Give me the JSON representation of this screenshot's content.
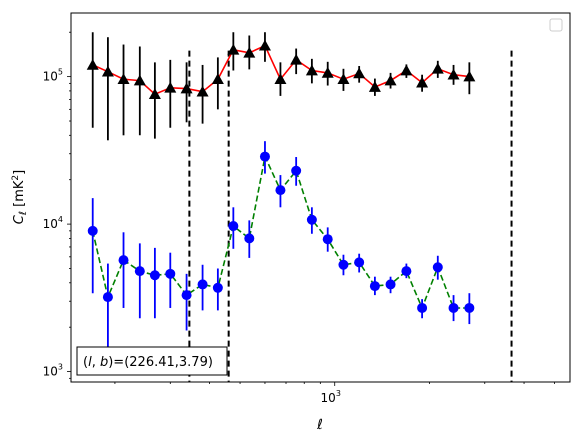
{
  "chart_data": {
    "type": "scatter",
    "title": "",
    "xlabel": "ℓ",
    "ylabel": "C_ℓ  [mK²]",
    "ylabel_main": "C",
    "ylabel_sub": "ℓ",
    "ylabel_unit": "  [mK",
    "ylabel_sup": "2",
    "ylabel_close": "]",
    "xscale": "log",
    "yscale": "log",
    "xlim": [
      145,
      5600
    ],
    "ylim": [
      850,
      270000
    ],
    "xticks_major": [
      {
        "value": 1000,
        "base": "10",
        "exp": "3"
      }
    ],
    "yticks_major": [
      {
        "value": 1000,
        "base": "10",
        "exp": "3"
      },
      {
        "value": 10000,
        "base": "10",
        "exp": "4"
      },
      {
        "value": 100000,
        "base": "10",
        "exp": "5"
      }
    ],
    "legend": "top-right (empty)",
    "annotation": "(l, b)=(226.41,3.79)",
    "annotation_parts": {
      "prefix": "(",
      "l": "l",
      "sep": ", ",
      "b": "b",
      "suffix": ")=(226.41,3.79)"
    },
    "vlines": [
      345,
      460,
      3650
    ],
    "series": [
      {
        "color": "#ff0000",
        "marker": "triangle",
        "marker_color": "#000000",
        "errbar_color": "#000000",
        "linestyle": "solid",
        "points": [
          {
            "x": 170,
            "y": 120000,
            "lo": 45000,
            "hi": 200000
          },
          {
            "x": 190,
            "y": 108000,
            "lo": 37000,
            "hi": 185000
          },
          {
            "x": 213,
            "y": 96000,
            "lo": 40000,
            "hi": 165000
          },
          {
            "x": 240,
            "y": 94000,
            "lo": 40000,
            "hi": 160000
          },
          {
            "x": 268,
            "y": 76000,
            "lo": 38000,
            "hi": 125000
          },
          {
            "x": 300,
            "y": 84000,
            "lo": 45000,
            "hi": 130000
          },
          {
            "x": 338,
            "y": 83000,
            "lo": 49000,
            "hi": 125000
          },
          {
            "x": 380,
            "y": 79000,
            "lo": 48000,
            "hi": 120000
          },
          {
            "x": 425,
            "y": 96000,
            "lo": 60000,
            "hi": 135000
          },
          {
            "x": 476,
            "y": 152000,
            "lo": 110000,
            "hi": 200000
          },
          {
            "x": 535,
            "y": 145000,
            "lo": 112000,
            "hi": 190000
          },
          {
            "x": 600,
            "y": 162000,
            "lo": 126000,
            "hi": 200000
          },
          {
            "x": 672,
            "y": 96000,
            "lo": 74000,
            "hi": 125000
          },
          {
            "x": 754,
            "y": 130000,
            "lo": 104000,
            "hi": 155000
          },
          {
            "x": 846,
            "y": 110000,
            "lo": 90000,
            "hi": 132000
          },
          {
            "x": 950,
            "y": 106000,
            "lo": 87000,
            "hi": 126000
          },
          {
            "x": 1066,
            "y": 96000,
            "lo": 80000,
            "hi": 113000
          },
          {
            "x": 1196,
            "y": 105000,
            "lo": 91000,
            "hi": 118000
          },
          {
            "x": 1342,
            "y": 85000,
            "lo": 74000,
            "hi": 97000
          },
          {
            "x": 1505,
            "y": 94000,
            "lo": 83000,
            "hi": 106000
          },
          {
            "x": 1690,
            "y": 110000,
            "lo": 98000,
            "hi": 121000
          },
          {
            "x": 1896,
            "y": 91000,
            "lo": 79000,
            "hi": 103000
          },
          {
            "x": 2127,
            "y": 113000,
            "lo": 98000,
            "hi": 128000
          },
          {
            "x": 2387,
            "y": 103000,
            "lo": 88000,
            "hi": 120000
          },
          {
            "x": 2680,
            "y": 100000,
            "lo": 76000,
            "hi": 125000
          }
        ]
      },
      {
        "color": "#008000",
        "marker": "circle",
        "marker_color": "#0000ff",
        "errbar_color": "#0000ff",
        "linestyle": "dashed",
        "points": [
          {
            "x": 170,
            "y": 9000,
            "lo": 3400,
            "hi": 15000
          },
          {
            "x": 190,
            "y": 3200,
            "lo": 1000,
            "hi": 5400
          },
          {
            "x": 213,
            "y": 5700,
            "lo": 2700,
            "hi": 8800
          },
          {
            "x": 240,
            "y": 4800,
            "lo": 2300,
            "hi": 7400
          },
          {
            "x": 268,
            "y": 4500,
            "lo": 2300,
            "hi": 6900
          },
          {
            "x": 300,
            "y": 4600,
            "lo": 2700,
            "hi": 6400
          },
          {
            "x": 338,
            "y": 3300,
            "lo": 1900,
            "hi": 4600
          },
          {
            "x": 380,
            "y": 3900,
            "lo": 2600,
            "hi": 5300
          },
          {
            "x": 425,
            "y": 3700,
            "lo": 2600,
            "hi": 5000
          },
          {
            "x": 476,
            "y": 9700,
            "lo": 6800,
            "hi": 13000
          },
          {
            "x": 535,
            "y": 8000,
            "lo": 5900,
            "hi": 10600
          },
          {
            "x": 600,
            "y": 28700,
            "lo": 22000,
            "hi": 36500
          },
          {
            "x": 672,
            "y": 17000,
            "lo": 13000,
            "hi": 21500
          },
          {
            "x": 754,
            "y": 23000,
            "lo": 18200,
            "hi": 28500
          },
          {
            "x": 846,
            "y": 10700,
            "lo": 8600,
            "hi": 13000
          },
          {
            "x": 950,
            "y": 7900,
            "lo": 6500,
            "hi": 9500
          },
          {
            "x": 1066,
            "y": 5300,
            "lo": 4500,
            "hi": 6200
          },
          {
            "x": 1196,
            "y": 5500,
            "lo": 4700,
            "hi": 6300
          },
          {
            "x": 1342,
            "y": 3800,
            "lo": 3300,
            "hi": 4400
          },
          {
            "x": 1505,
            "y": 3900,
            "lo": 3400,
            "hi": 4400
          },
          {
            "x": 1690,
            "y": 4800,
            "lo": 4300,
            "hi": 5400
          },
          {
            "x": 1896,
            "y": 2700,
            "lo": 2300,
            "hi": 3100
          },
          {
            "x": 2127,
            "y": 5100,
            "lo": 4200,
            "hi": 6100
          },
          {
            "x": 2387,
            "y": 2700,
            "lo": 2200,
            "hi": 3300
          },
          {
            "x": 2680,
            "y": 2700,
            "lo": 2100,
            "hi": 3400
          }
        ]
      }
    ]
  }
}
